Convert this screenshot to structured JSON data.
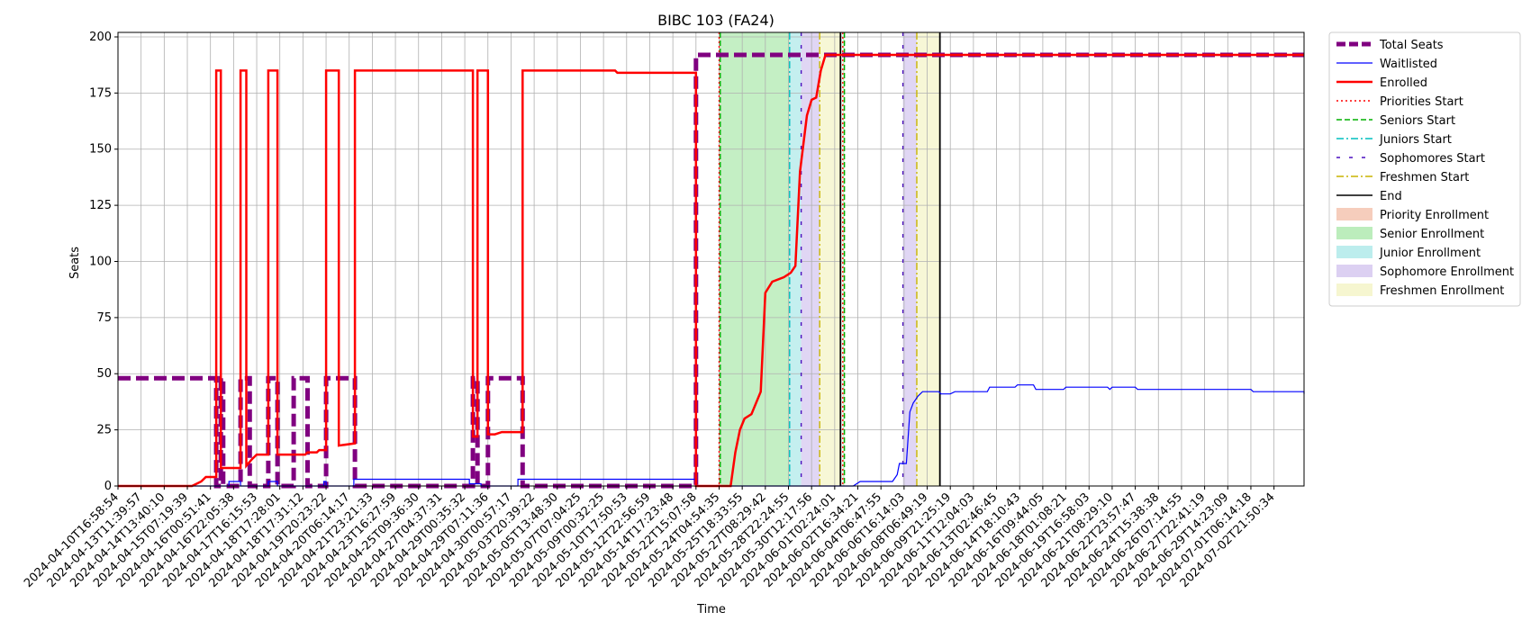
{
  "chart_data": {
    "type": "line",
    "title": "BIBC 103 (FA24)",
    "xlabel": "Time",
    "ylabel": "Seats",
    "ylim": [
      0,
      202
    ],
    "yticks": [
      0,
      25,
      50,
      75,
      100,
      125,
      150,
      175,
      200
    ],
    "grid": true,
    "legend_position": "outside-right",
    "x_ticks": [
      "2024-04-10T16:58:54",
      "2024-04-13T11:39:57",
      "2024-04-14T13:40:10",
      "2024-04-15T07:19:39",
      "2024-04-16T00:51:41",
      "2024-04-16T22:05:38",
      "2024-04-17T16:15:53",
      "2024-04-18T17:28:01",
      "2024-04-18T17:31:12",
      "2024-04-19T20:23:22",
      "2024-04-20T06:14:17",
      "2024-04-21T23:21:33",
      "2024-04-23T16:27:59",
      "2024-04-25T09:36:30",
      "2024-04-27T04:37:31",
      "2024-04-29T00:35:32",
      "2024-04-29T07:11:36",
      "2024-04-30T00:57:17",
      "2024-05-03T20:39:22",
      "2024-05-05T13:48:30",
      "2024-05-07T07:04:25",
      "2024-05-09T00:32:25",
      "2024-05-10T17:50:53",
      "2024-05-12T22:56:59",
      "2024-05-14T17:23:48",
      "2024-05-22T15:07:58",
      "2024-05-24T04:54:35",
      "2024-05-25T18:33:55",
      "2024-05-27T08:29:42",
      "2024-05-28T22:24:55",
      "2024-05-30T12:17:56",
      "2024-06-01T02:24:01",
      "2024-06-02T16:34:21",
      "2024-06-04T06:47:55",
      "2024-06-06T16:14:03",
      "2024-06-08T06:49:19",
      "2024-06-09T21:25:19",
      "2024-06-11T12:04:03",
      "2024-06-13T02:46:45",
      "2024-06-14T18:10:43",
      "2024-06-16T09:44:05",
      "2024-06-18T01:08:21",
      "2024-06-19T16:58:03",
      "2024-06-21T08:29:10",
      "2024-06-22T23:57:47",
      "2024-06-24T15:38:38",
      "2024-06-26T07:14:55",
      "2024-06-27T22:41:19",
      "2024-06-29T14:23:09",
      "2024-07-01T06:14:18",
      "2024-07-02T21:50:34"
    ],
    "x_range": [
      0,
      51.3
    ],
    "series": [
      {
        "name": "Total Seats",
        "style": "dashed-thick",
        "color": "#800080",
        "points": [
          [
            0,
            48
          ],
          [
            4.25,
            48
          ],
          [
            4.25,
            0
          ],
          [
            4.45,
            0
          ],
          [
            4.45,
            48
          ],
          [
            4.55,
            48
          ],
          [
            4.55,
            0
          ],
          [
            5.3,
            0
          ],
          [
            5.3,
            48
          ],
          [
            5.7,
            48
          ],
          [
            5.7,
            0
          ],
          [
            6.5,
            0
          ],
          [
            6.5,
            48
          ],
          [
            6.9,
            48
          ],
          [
            6.9,
            0
          ],
          [
            7.6,
            0
          ],
          [
            7.6,
            48
          ],
          [
            8.2,
            48
          ],
          [
            8.2,
            0
          ],
          [
            9.0,
            0
          ],
          [
            9.0,
            48
          ],
          [
            10.25,
            48
          ],
          [
            10.25,
            0
          ],
          [
            15.35,
            0
          ],
          [
            15.35,
            48
          ],
          [
            15.55,
            48
          ],
          [
            15.55,
            0
          ],
          [
            16.0,
            0
          ],
          [
            16.0,
            48
          ],
          [
            17.5,
            48
          ],
          [
            17.5,
            0
          ],
          [
            25.0,
            0
          ],
          [
            25.0,
            192
          ],
          [
            51.3,
            192
          ]
        ]
      },
      {
        "name": "Waitlisted",
        "style": "solid-thin",
        "color": "#0000ff",
        "points": [
          [
            0,
            0
          ],
          [
            4.8,
            0
          ],
          [
            4.8,
            2
          ],
          [
            5.3,
            2
          ],
          [
            5.3,
            0
          ],
          [
            6.5,
            0
          ],
          [
            6.5,
            2
          ],
          [
            6.9,
            2
          ],
          [
            6.9,
            0
          ],
          [
            8.9,
            0
          ],
          [
            8.9,
            2
          ],
          [
            9.0,
            2
          ],
          [
            9.0,
            0
          ],
          [
            10.2,
            0
          ],
          [
            10.2,
            3
          ],
          [
            15.2,
            3
          ],
          [
            15.2,
            1
          ],
          [
            15.7,
            1
          ],
          [
            15.7,
            0
          ],
          [
            17.3,
            0
          ],
          [
            17.3,
            3
          ],
          [
            25.0,
            3
          ],
          [
            25.0,
            0
          ],
          [
            31.8,
            0
          ],
          [
            32.1,
            2
          ],
          [
            33.5,
            2
          ],
          [
            33.7,
            5
          ],
          [
            33.8,
            10
          ],
          [
            34.1,
            10
          ],
          [
            34.25,
            33
          ],
          [
            34.4,
            37
          ],
          [
            34.6,
            40
          ],
          [
            34.8,
            42
          ],
          [
            35.5,
            42
          ],
          [
            35.6,
            41
          ],
          [
            36.0,
            41
          ],
          [
            36.2,
            42
          ],
          [
            37.6,
            42
          ],
          [
            37.7,
            44
          ],
          [
            38.8,
            44
          ],
          [
            38.9,
            45
          ],
          [
            39.6,
            45
          ],
          [
            39.7,
            43
          ],
          [
            40.9,
            43
          ],
          [
            41.0,
            44
          ],
          [
            42.8,
            44
          ],
          [
            42.9,
            43
          ],
          [
            43.0,
            44
          ],
          [
            44.0,
            44
          ],
          [
            44.1,
            43
          ],
          [
            49.0,
            43
          ],
          [
            49.1,
            42
          ],
          [
            51.3,
            42
          ],
          [
            51.3,
            41
          ]
        ]
      },
      {
        "name": "Enrolled",
        "style": "solid",
        "color": "#ff0000",
        "points": [
          [
            0,
            0
          ],
          [
            3.2,
            0
          ],
          [
            3.4,
            1
          ],
          [
            3.6,
            2
          ],
          [
            3.8,
            4
          ],
          [
            4.25,
            4
          ],
          [
            4.25,
            185
          ],
          [
            4.45,
            185
          ],
          [
            4.45,
            8
          ],
          [
            5.3,
            8
          ],
          [
            5.3,
            185
          ],
          [
            5.55,
            185
          ],
          [
            5.55,
            9
          ],
          [
            5.8,
            12
          ],
          [
            6.0,
            14
          ],
          [
            6.5,
            14
          ],
          [
            6.5,
            185
          ],
          [
            6.9,
            185
          ],
          [
            6.9,
            14
          ],
          [
            8.1,
            14
          ],
          [
            8.2,
            15
          ],
          [
            8.6,
            15
          ],
          [
            8.7,
            16
          ],
          [
            9.0,
            16
          ],
          [
            9.0,
            185
          ],
          [
            9.55,
            185
          ],
          [
            9.55,
            18
          ],
          [
            10.25,
            19
          ],
          [
            10.25,
            185
          ],
          [
            15.35,
            185
          ],
          [
            15.35,
            22
          ],
          [
            15.55,
            22
          ],
          [
            15.55,
            185
          ],
          [
            16.0,
            185
          ],
          [
            16.0,
            23
          ],
          [
            16.3,
            23
          ],
          [
            16.6,
            24
          ],
          [
            17.5,
            24
          ],
          [
            17.5,
            185
          ],
          [
            21.5,
            185
          ],
          [
            21.6,
            184
          ],
          [
            25.0,
            184
          ],
          [
            25.0,
            0
          ],
          [
            26.5,
            0
          ],
          [
            26.7,
            15
          ],
          [
            26.9,
            25
          ],
          [
            27.1,
            30
          ],
          [
            27.4,
            32
          ],
          [
            27.8,
            42
          ],
          [
            28.0,
            86
          ],
          [
            28.3,
            91
          ],
          [
            28.8,
            93
          ],
          [
            29.1,
            95
          ],
          [
            29.3,
            98
          ],
          [
            29.5,
            140
          ],
          [
            29.8,
            165
          ],
          [
            30.0,
            172
          ],
          [
            30.2,
            173
          ],
          [
            30.4,
            185
          ],
          [
            30.6,
            192
          ],
          [
            51.3,
            192
          ]
        ]
      }
    ],
    "start_lines": [
      {
        "name": "Priorities Start",
        "x": 26.0,
        "color": "#ff0000",
        "dash": "2,3"
      },
      {
        "name": "Seniors Start",
        "x": 26.05,
        "color": "#00b000",
        "dash": "6,3"
      },
      {
        "name": "Juniors Start",
        "x": 29.05,
        "color": "#00bfbf",
        "dash": "8,3,2,3"
      },
      {
        "name": "Sophomores Start",
        "x": 29.55,
        "color": "#4b0fbf",
        "dash": "4,10"
      },
      {
        "name": "Freshmen Start",
        "x": 30.35,
        "color": "#c9b400",
        "dash": "8,3,2,3"
      },
      {
        "name": "End",
        "x": 31.25,
        "color": "#000000",
        "dash": ""
      },
      {
        "name": "Priorities Start",
        "x": 31.35,
        "color": "#ff0000",
        "dash": "2,3"
      },
      {
        "name": "Seniors Start",
        "x": 31.42,
        "color": "#00b000",
        "dash": "6,3"
      },
      {
        "name": "Sophomores Start",
        "x": 33.95,
        "color": "#4b0fbf",
        "dash": "4,10"
      },
      {
        "name": "Freshmen Start",
        "x": 34.55,
        "color": "#c9b400",
        "dash": "8,3,2,3"
      },
      {
        "name": "End",
        "x": 35.55,
        "color": "#000000",
        "dash": ""
      }
    ],
    "bands": [
      {
        "name": "Priority Enrollment",
        "x0": 26.0,
        "x1": 26.05,
        "color": "#f4c4b0"
      },
      {
        "name": "Senior Enrollment",
        "x0": 26.05,
        "x1": 29.05,
        "color": "#b0eab0"
      },
      {
        "name": "Junior Enrollment",
        "x0": 29.05,
        "x1": 29.55,
        "color": "#b0eaea"
      },
      {
        "name": "Sophomore Enrollment",
        "x0": 29.55,
        "x1": 30.35,
        "color": "#d6c8f0"
      },
      {
        "name": "Freshmen Enrollment",
        "x0": 30.35,
        "x1": 31.25,
        "color": "#f4f4c8"
      },
      {
        "name": "Senior Enrollment",
        "x0": 31.35,
        "x1": 31.42,
        "color": "#b0eab0"
      },
      {
        "name": "Sophomore Enrollment",
        "x0": 33.95,
        "x1": 34.55,
        "color": "#d6c8f0"
      },
      {
        "name": "Freshmen Enrollment",
        "x0": 34.55,
        "x1": 35.55,
        "color": "#f4f4c8"
      }
    ],
    "legend": [
      {
        "label": "Total Seats",
        "kind": "line",
        "color": "#800080",
        "width": 5,
        "dash": "10,4"
      },
      {
        "label": "Waitlisted",
        "kind": "line",
        "color": "#0000ff",
        "width": 1.2,
        "dash": ""
      },
      {
        "label": "Enrolled",
        "kind": "line",
        "color": "#ff0000",
        "width": 2.5,
        "dash": ""
      },
      {
        "label": "Priorities Start",
        "kind": "line",
        "color": "#ff0000",
        "width": 1.5,
        "dash": "2,3"
      },
      {
        "label": "Seniors Start",
        "kind": "line",
        "color": "#00b000",
        "width": 1.5,
        "dash": "6,3"
      },
      {
        "label": "Juniors Start",
        "kind": "line",
        "color": "#00bfbf",
        "width": 1.5,
        "dash": "8,3,2,3"
      },
      {
        "label": "Sophomores Start",
        "kind": "line",
        "color": "#4b0fbf",
        "width": 1.5,
        "dash": "4,10"
      },
      {
        "label": "Freshmen Start",
        "kind": "line",
        "color": "#c9b400",
        "width": 1.5,
        "dash": "8,3,2,3"
      },
      {
        "label": "End",
        "kind": "line",
        "color": "#000000",
        "width": 1.5,
        "dash": ""
      },
      {
        "label": "Priority Enrollment",
        "kind": "patch",
        "color": "#f4c4b0"
      },
      {
        "label": "Senior Enrollment",
        "kind": "patch",
        "color": "#b0eab0"
      },
      {
        "label": "Junior Enrollment",
        "kind": "patch",
        "color": "#b0eaea"
      },
      {
        "label": "Sophomore Enrollment",
        "kind": "patch",
        "color": "#d6c8f0"
      },
      {
        "label": "Freshmen Enrollment",
        "kind": "patch",
        "color": "#f4f4c8"
      }
    ]
  }
}
